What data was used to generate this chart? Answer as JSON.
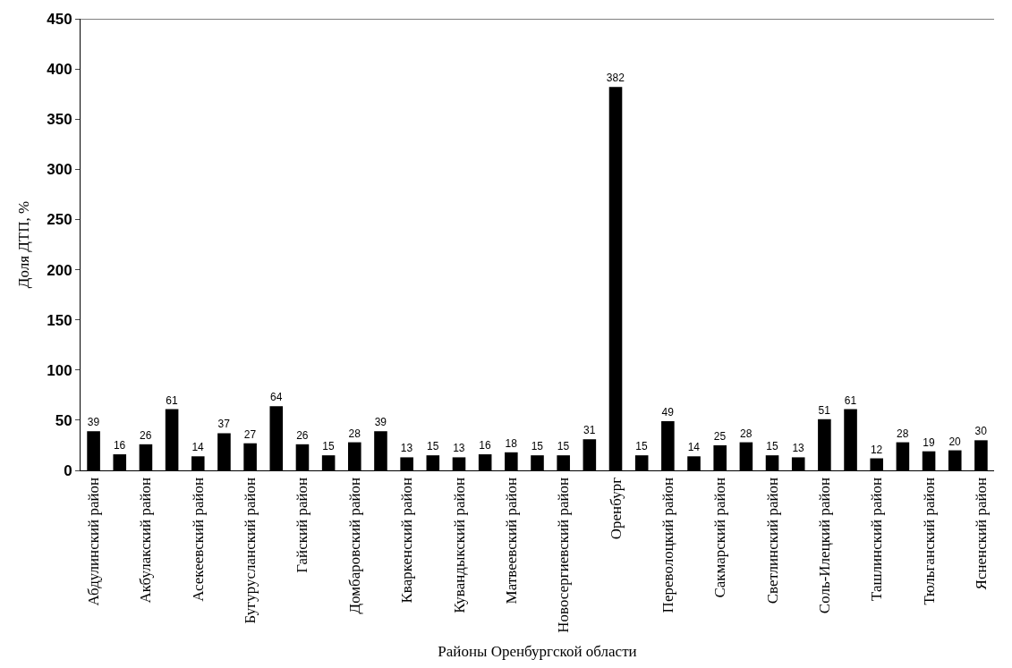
{
  "chart_data": {
    "type": "bar",
    "xlabel": "Районы Оренбургской области",
    "ylabel": "Доля ДТП, %",
    "categories": [
      "Абдулинский район",
      null,
      "Акбулакский район",
      null,
      "Асекеевский район",
      null,
      "Бугурусланский район",
      null,
      "Гайский район",
      null,
      "Домбаровский район",
      null,
      "Кваркенский район",
      null,
      "Кувандыкский район",
      null,
      "Матвеевский район",
      null,
      "Новосергиевский район",
      null,
      "Оренбург",
      null,
      "Переволоцкий район",
      null,
      "Сакмарский район",
      null,
      "Светлинский район",
      null,
      "Соль-Илецкий район",
      null,
      "Ташлинский район",
      null,
      "Тюльганский район",
      null,
      "Ясненский район"
    ],
    "values": [
      39,
      16,
      26,
      61,
      14,
      37,
      27,
      64,
      26,
      15,
      28,
      39,
      13,
      15,
      13,
      16,
      18,
      15,
      15,
      31,
      382,
      15,
      49,
      14,
      25,
      28,
      15,
      13,
      51,
      61,
      12,
      28,
      19,
      20,
      30
    ],
    "color": "#000000",
    "ylim": [
      0,
      450
    ],
    "yticks": [
      0,
      50,
      100,
      150,
      200,
      250,
      300,
      350,
      400,
      450
    ],
    "data_labels": true
  }
}
